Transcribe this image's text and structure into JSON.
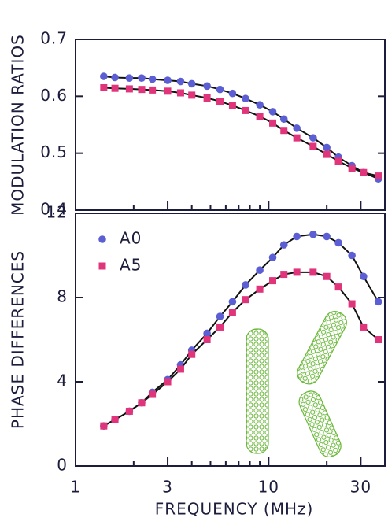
{
  "chart_data": [
    {
      "type": "scatter",
      "ylabel": "MODULATION RATIOS",
      "x": [
        1.4,
        1.6,
        1.9,
        2.2,
        2.5,
        3,
        3.5,
        4,
        4.8,
        5.6,
        6.5,
        7.6,
        9,
        10.5,
        12,
        14,
        17,
        20,
        23,
        27,
        31,
        37
      ],
      "series": [
        {
          "name": "A0",
          "color": "#5b5fd3",
          "marker": "circle",
          "values": [
            0.635,
            0.633,
            0.632,
            0.632,
            0.63,
            0.628,
            0.626,
            0.622,
            0.618,
            0.612,
            0.605,
            0.596,
            0.585,
            0.573,
            0.56,
            0.544,
            0.527,
            0.51,
            0.493,
            0.478,
            0.466,
            0.455
          ]
        },
        {
          "name": "A5",
          "color": "#e0357a",
          "marker": "square",
          "values": [
            0.615,
            0.614,
            0.613,
            0.612,
            0.611,
            0.609,
            0.606,
            0.602,
            0.597,
            0.591,
            0.584,
            0.575,
            0.565,
            0.553,
            0.54,
            0.527,
            0.512,
            0.498,
            0.486,
            0.474,
            0.466,
            0.46
          ]
        }
      ],
      "xlim": [
        1,
        40
      ],
      "xscale": "log",
      "ylim": [
        0.4,
        0.7
      ],
      "yticks": [
        0.4,
        0.5,
        0.6,
        0.7
      ],
      "legend": false
    },
    {
      "type": "scatter",
      "ylabel": "PHASE DIFFERENCES",
      "xlabel": "FREQUENCY (MHz)",
      "x": [
        1.4,
        1.6,
        1.9,
        2.2,
        2.5,
        3,
        3.5,
        4,
        4.8,
        5.6,
        6.5,
        7.6,
        9,
        10.5,
        12,
        14,
        17,
        20,
        23,
        27,
        31,
        37
      ],
      "series": [
        {
          "name": "A0",
          "color": "#5b5fd3",
          "marker": "circle",
          "values": [
            1.9,
            2.2,
            2.6,
            3.0,
            3.5,
            4.1,
            4.8,
            5.5,
            6.3,
            7.1,
            7.8,
            8.6,
            9.3,
            9.9,
            10.5,
            10.9,
            11.0,
            10.9,
            10.6,
            10.0,
            9.0,
            7.8
          ]
        },
        {
          "name": "A5",
          "color": "#e0357a",
          "marker": "square",
          "values": [
            1.9,
            2.2,
            2.6,
            3.0,
            3.4,
            4.0,
            4.6,
            5.3,
            6.0,
            6.6,
            7.3,
            7.9,
            8.4,
            8.8,
            9.1,
            9.2,
            9.2,
            9.0,
            8.5,
            7.7,
            6.6,
            6.0
          ]
        }
      ],
      "xlim": [
        1,
        40
      ],
      "xscale": "log",
      "xticks": [
        1,
        3,
        10,
        30
      ],
      "xminorticks": [
        2,
        4,
        5,
        6,
        7,
        8,
        9,
        20
      ],
      "ylim": [
        0,
        12
      ],
      "yticks": [
        0,
        4,
        8,
        12
      ],
      "legend": "upper left"
    }
  ]
}
